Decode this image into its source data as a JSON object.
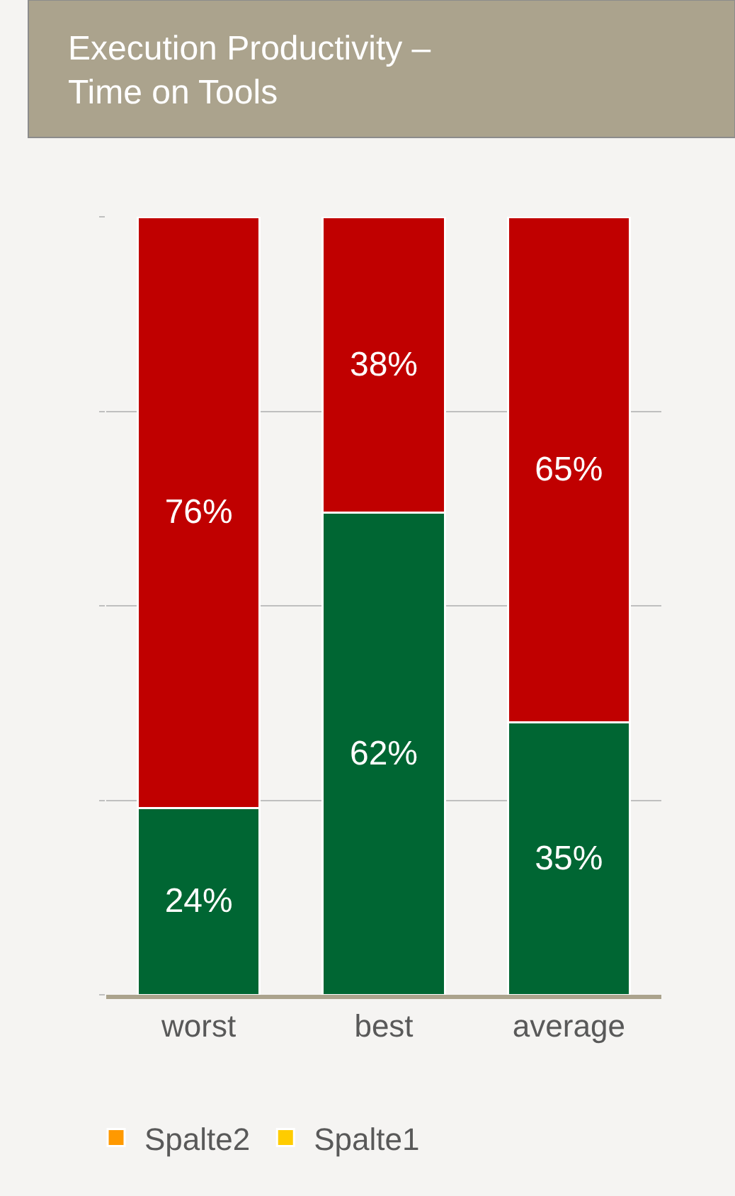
{
  "chart_data": {
    "type": "bar",
    "title": "Execution Productivity –\nTime on Tools",
    "categories": [
      "worst",
      "best",
      "average"
    ],
    "stacked": true,
    "series": [
      {
        "color": "#006633",
        "values": [
          24,
          62,
          35
        ],
        "value_labels": [
          "24%",
          "62%",
          "35%"
        ]
      },
      {
        "color": "#c00000",
        "values": [
          76,
          38,
          65
        ],
        "value_labels": [
          "76%",
          "38%",
          "65%"
        ]
      },
      {
        "name": "Spalte2",
        "color": "#ff9900",
        "values": [
          null,
          null,
          null
        ]
      },
      {
        "name": "Spalte1",
        "color": "#ffcc00",
        "values": [
          null,
          null,
          null
        ]
      }
    ],
    "ylim": [
      0,
      100
    ],
    "yticks": [
      {
        "value": 0,
        "label": null
      },
      {
        "value": 25,
        "label": null
      },
      {
        "value": 50,
        "label": null
      },
      {
        "value": 75,
        "label": null
      },
      {
        "value": 100,
        "label": null
      }
    ],
    "grid": "y",
    "legend": "bottom",
    "tick_labels": "x"
  }
}
